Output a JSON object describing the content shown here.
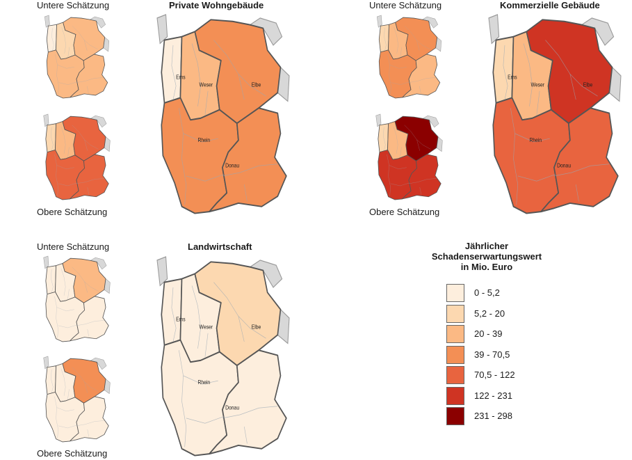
{
  "labels": {
    "lower": "Untere Schätzung",
    "upper": "Obere Schätzung"
  },
  "panels": {
    "private": {
      "title": "Private Wohngebäude"
    },
    "commercial": {
      "title": "Kommerzielle Gebäude"
    },
    "agriculture": {
      "title": "Landwirtschaft"
    }
  },
  "rivers": {
    "ems": "Ems",
    "weser": "Weser",
    "elbe": "Elbe",
    "rhein": "Rhein",
    "donau": "Donau"
  },
  "neighbor_color": "#d8d8d8",
  "legend": {
    "title_line1": "Jährlicher",
    "title_line2": "Schadenserwartungswert",
    "title_line3": "in Mio. Euro",
    "classes": [
      {
        "label": "0 - 5,2",
        "color": "#fdeedd"
      },
      {
        "label": "5,2 - 20",
        "color": "#fcd8b0"
      },
      {
        "label": "20 - 39",
        "color": "#fbb984"
      },
      {
        "label": "39 - 70,5",
        "color": "#f38f55"
      },
      {
        "label": "70,5 - 122",
        "color": "#e8643f"
      },
      {
        "label": "122 - 231",
        "color": "#cf3423"
      },
      {
        "label": "231 - 298",
        "color": "#8b0000"
      }
    ]
  },
  "maps": [
    {
      "id": "private-lower",
      "classes": {
        "ems": 0,
        "weser": 1,
        "elbe": 2,
        "rhein": 2,
        "donau": 2
      }
    },
    {
      "id": "private-upper",
      "classes": {
        "ems": 1,
        "weser": 2,
        "elbe": 4,
        "rhein": 4,
        "donau": 4
      }
    },
    {
      "id": "private-main",
      "classes": {
        "ems": 0,
        "weser": 2,
        "elbe": 3,
        "rhein": 3,
        "donau": 3
      }
    },
    {
      "id": "commercial-lower",
      "classes": {
        "ems": 1,
        "weser": 2,
        "elbe": 3,
        "rhein": 3,
        "donau": 2
      }
    },
    {
      "id": "commercial-upper",
      "classes": {
        "ems": 1,
        "weser": 2,
        "elbe": 6,
        "rhein": 5,
        "donau": 5
      }
    },
    {
      "id": "commercial-main",
      "classes": {
        "ems": 1,
        "weser": 2,
        "elbe": 5,
        "rhein": 4,
        "donau": 4
      }
    },
    {
      "id": "agri-lower",
      "classes": {
        "ems": 0,
        "weser": 0,
        "elbe": 2,
        "rhein": 0,
        "donau": 0
      }
    },
    {
      "id": "agri-upper",
      "classes": {
        "ems": 0,
        "weser": 0,
        "elbe": 3,
        "rhein": 0,
        "donau": 0
      }
    },
    {
      "id": "agri-main",
      "classes": {
        "ems": 0,
        "weser": 0,
        "elbe": 1,
        "rhein": 0,
        "donau": 0
      }
    }
  ]
}
